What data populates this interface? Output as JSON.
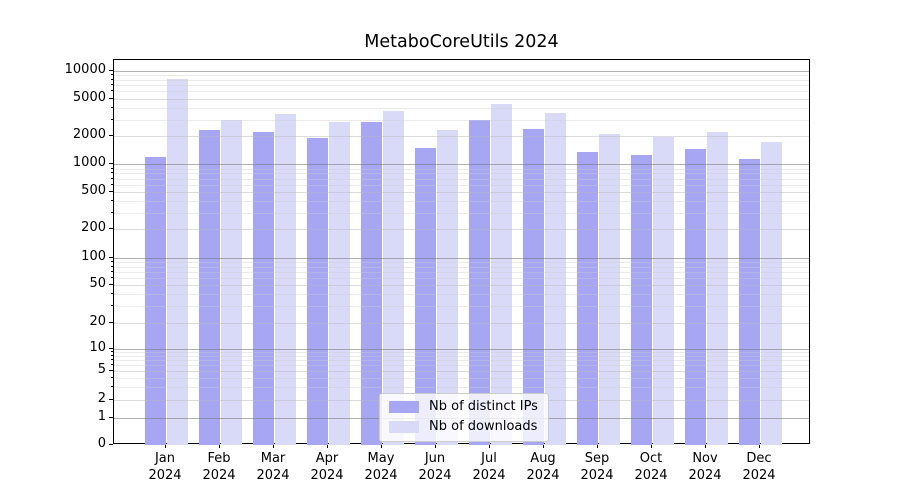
{
  "chart_data": {
    "type": "bar",
    "title": "MetaboCoreUtils 2024",
    "categories": [
      "Jan",
      "Feb",
      "Mar",
      "Apr",
      "May",
      "Jun",
      "Jul",
      "Aug",
      "Sep",
      "Oct",
      "Nov",
      "Dec"
    ],
    "x_year_label": "2024",
    "series": [
      {
        "name": "Nb of distinct IPs",
        "color": "#a6a6f2",
        "values": [
          1200,
          2300,
          2200,
          1900,
          2850,
          1500,
          2950,
          2400,
          1350,
          1250,
          1450,
          1150
        ]
      },
      {
        "name": "Nb of downloads",
        "color": "#d9d9f8",
        "values": [
          8200,
          3000,
          3400,
          2800,
          3700,
          2300,
          4400,
          3500,
          2100,
          1950,
          2200,
          1750
        ]
      }
    ],
    "yscale": "symlog",
    "ylim": [
      0,
      13000
    ],
    "yticks": [
      10000,
      5000,
      2000,
      1000,
      500,
      200,
      100,
      50,
      20,
      10,
      5,
      2,
      1,
      0
    ],
    "grid": true,
    "legend_position": "inside lower center"
  },
  "colors": {
    "spine": "#000000",
    "grid_major": "#b0b0b0",
    "grid_minor": "#e6e6e6",
    "background": "#ffffff",
    "legend_border": "#cccccc"
  }
}
